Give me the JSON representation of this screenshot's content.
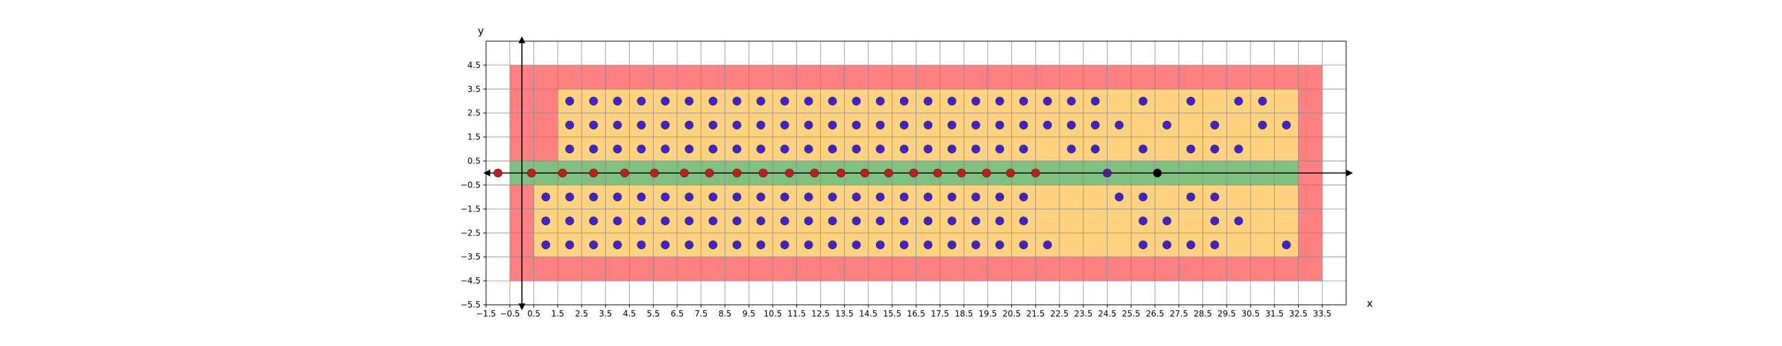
{
  "chart_data": {
    "type": "scatter",
    "title": "",
    "xlabel": "x",
    "ylabel": "y",
    "xlim": [
      -1.5,
      34.5
    ],
    "ylim": [
      -5.5,
      5.5
    ],
    "grid": true,
    "xticks": [
      -1.5,
      -0.5,
      0.5,
      1.5,
      2.5,
      3.5,
      4.5,
      5.5,
      6.5,
      7.5,
      8.5,
      9.5,
      10.5,
      11.5,
      12.5,
      13.5,
      14.5,
      15.5,
      16.5,
      17.5,
      18.5,
      19.5,
      20.5,
      21.5,
      22.5,
      23.5,
      24.5,
      25.5,
      26.5,
      27.5,
      28.5,
      29.5,
      30.5,
      31.5,
      32.5,
      33.5
    ],
    "xtick_labels": [
      "−1.5",
      "−0.5",
      "0.5",
      "1.5",
      "2.5",
      "3.5",
      "4.5",
      "5.5",
      "6.5",
      "7.5",
      "8.5",
      "9.5",
      "10.5",
      "11.5",
      "12.5",
      "13.5",
      "14.5",
      "15.5",
      "16.5",
      "17.5",
      "18.5",
      "19.5",
      "20.5",
      "21.5",
      "22.5",
      "23.5",
      "24.5",
      "25.5",
      "26.5",
      "27.5",
      "28.5",
      "29.5",
      "30.5",
      "31.5",
      "32.5",
      "33.5"
    ],
    "yticks": [
      -5.5,
      -4.5,
      -3.5,
      -2.5,
      -1.5,
      -0.5,
      0.5,
      1.5,
      2.5,
      3.5,
      4.5
    ],
    "ytick_labels": [
      "−5.5",
      "−4.5",
      "−3.5",
      "−2.5",
      "−1.5",
      "−0.5",
      "0.5",
      "1.5",
      "2.5",
      "3.5",
      "4.5"
    ],
    "regions": [
      {
        "fill": "#ff8080",
        "x": [
          -0.5,
          33.5
        ],
        "y": [
          -4.5,
          4.5
        ]
      },
      {
        "fill": "#ffd280",
        "x": [
          1.5,
          32.5
        ],
        "y": [
          0.5,
          3.5
        ]
      },
      {
        "fill": "#ffd280",
        "x": [
          0.5,
          32.5
        ],
        "y": [
          -3.5,
          -0.5
        ]
      },
      {
        "fill": "#80c080",
        "x": [
          -0.5,
          32.5
        ],
        "y": [
          -0.5,
          0.5
        ]
      }
    ],
    "colors": {
      "blue_point": "#3f22d6",
      "red_point": "#c41c1c",
      "purple_point": "#5a1a9a",
      "black_point": "#000000",
      "grid": "#888888"
    },
    "series": [
      {
        "marker": "blue",
        "points": [
          [
            2,
            3
          ],
          [
            3,
            3
          ],
          [
            4,
            3
          ],
          [
            5,
            3
          ],
          [
            6,
            3
          ],
          [
            7,
            3
          ],
          [
            8,
            3
          ],
          [
            9,
            3
          ],
          [
            10,
            3
          ],
          [
            11,
            3
          ],
          [
            12,
            3
          ],
          [
            13,
            3
          ],
          [
            14,
            3
          ],
          [
            15,
            3
          ],
          [
            16,
            3
          ],
          [
            17,
            3
          ],
          [
            18,
            3
          ],
          [
            19,
            3
          ],
          [
            20,
            3
          ],
          [
            21,
            3
          ],
          [
            22,
            3
          ],
          [
            23,
            3
          ],
          [
            24,
            3
          ],
          [
            26,
            3
          ],
          [
            28,
            3
          ],
          [
            30,
            3
          ],
          [
            31,
            3
          ],
          [
            2,
            2
          ],
          [
            3,
            2
          ],
          [
            4,
            2
          ],
          [
            5,
            2
          ],
          [
            6,
            2
          ],
          [
            7,
            2
          ],
          [
            8,
            2
          ],
          [
            9,
            2
          ],
          [
            10,
            2
          ],
          [
            11,
            2
          ],
          [
            12,
            2
          ],
          [
            13,
            2
          ],
          [
            14,
            2
          ],
          [
            15,
            2
          ],
          [
            16,
            2
          ],
          [
            17,
            2
          ],
          [
            18,
            2
          ],
          [
            19,
            2
          ],
          [
            20,
            2
          ],
          [
            21,
            2
          ],
          [
            22,
            2
          ],
          [
            23,
            2
          ],
          [
            24,
            2
          ],
          [
            25,
            2
          ],
          [
            27,
            2
          ],
          [
            29,
            2
          ],
          [
            31,
            2
          ],
          [
            32,
            2
          ],
          [
            2,
            1
          ],
          [
            3,
            1
          ],
          [
            4,
            1
          ],
          [
            5,
            1
          ],
          [
            6,
            1
          ],
          [
            7,
            1
          ],
          [
            8,
            1
          ],
          [
            9,
            1
          ],
          [
            10,
            1
          ],
          [
            11,
            1
          ],
          [
            12,
            1
          ],
          [
            13,
            1
          ],
          [
            14,
            1
          ],
          [
            15,
            1
          ],
          [
            16,
            1
          ],
          [
            17,
            1
          ],
          [
            18,
            1
          ],
          [
            19,
            1
          ],
          [
            20,
            1
          ],
          [
            21,
            1
          ],
          [
            23,
            1
          ],
          [
            24,
            1
          ],
          [
            26,
            1
          ],
          [
            28,
            1
          ],
          [
            29,
            1
          ],
          [
            30,
            1
          ],
          [
            1,
            -1
          ],
          [
            2,
            -1
          ],
          [
            3,
            -1
          ],
          [
            4,
            -1
          ],
          [
            5,
            -1
          ],
          [
            6,
            -1
          ],
          [
            7,
            -1
          ],
          [
            8,
            -1
          ],
          [
            9,
            -1
          ],
          [
            10,
            -1
          ],
          [
            11,
            -1
          ],
          [
            12,
            -1
          ],
          [
            13,
            -1
          ],
          [
            14,
            -1
          ],
          [
            15,
            -1
          ],
          [
            16,
            -1
          ],
          [
            17,
            -1
          ],
          [
            18,
            -1
          ],
          [
            19,
            -1
          ],
          [
            20,
            -1
          ],
          [
            21,
            -1
          ],
          [
            25,
            -1
          ],
          [
            26,
            -1
          ],
          [
            28,
            -1
          ],
          [
            29,
            -1
          ],
          [
            1,
            -2
          ],
          [
            2,
            -2
          ],
          [
            3,
            -2
          ],
          [
            4,
            -2
          ],
          [
            5,
            -2
          ],
          [
            6,
            -2
          ],
          [
            7,
            -2
          ],
          [
            8,
            -2
          ],
          [
            9,
            -2
          ],
          [
            10,
            -2
          ],
          [
            11,
            -2
          ],
          [
            12,
            -2
          ],
          [
            13,
            -2
          ],
          [
            14,
            -2
          ],
          [
            15,
            -2
          ],
          [
            16,
            -2
          ],
          [
            17,
            -2
          ],
          [
            18,
            -2
          ],
          [
            19,
            -2
          ],
          [
            20,
            -2
          ],
          [
            21,
            -2
          ],
          [
            26,
            -2
          ],
          [
            27,
            -2
          ],
          [
            29,
            -2
          ],
          [
            30,
            -2
          ],
          [
            1,
            -3
          ],
          [
            2,
            -3
          ],
          [
            3,
            -3
          ],
          [
            4,
            -3
          ],
          [
            5,
            -3
          ],
          [
            6,
            -3
          ],
          [
            7,
            -3
          ],
          [
            8,
            -3
          ],
          [
            9,
            -3
          ],
          [
            10,
            -3
          ],
          [
            11,
            -3
          ],
          [
            12,
            -3
          ],
          [
            13,
            -3
          ],
          [
            14,
            -3
          ],
          [
            15,
            -3
          ],
          [
            16,
            -3
          ],
          [
            17,
            -3
          ],
          [
            18,
            -3
          ],
          [
            19,
            -3
          ],
          [
            20,
            -3
          ],
          [
            21,
            -3
          ],
          [
            22,
            -3
          ],
          [
            26,
            -3
          ],
          [
            27,
            -3
          ],
          [
            28,
            -3
          ],
          [
            29,
            -3
          ],
          [
            32,
            -3
          ]
        ]
      },
      {
        "marker": "red",
        "points": [
          [
            -1,
            0
          ],
          [
            0.4,
            0
          ],
          [
            1.7,
            0
          ],
          [
            3,
            0
          ],
          [
            4.3,
            0
          ],
          [
            5.55,
            0
          ],
          [
            6.8,
            0
          ],
          [
            7.85,
            0
          ],
          [
            9,
            0
          ],
          [
            10.1,
            0
          ],
          [
            11.2,
            0
          ],
          [
            12.25,
            0
          ],
          [
            13.35,
            0
          ],
          [
            14.35,
            0
          ],
          [
            15.35,
            0
          ],
          [
            16.4,
            0
          ],
          [
            17.4,
            0
          ],
          [
            18.4,
            0
          ],
          [
            19.45,
            0
          ],
          [
            20.45,
            0
          ],
          [
            21.5,
            0
          ]
        ]
      },
      {
        "marker": "purple",
        "points": [
          [
            24.5,
            0
          ]
        ]
      },
      {
        "marker": "black",
        "points": [
          [
            26.6,
            0
          ]
        ]
      }
    ]
  }
}
